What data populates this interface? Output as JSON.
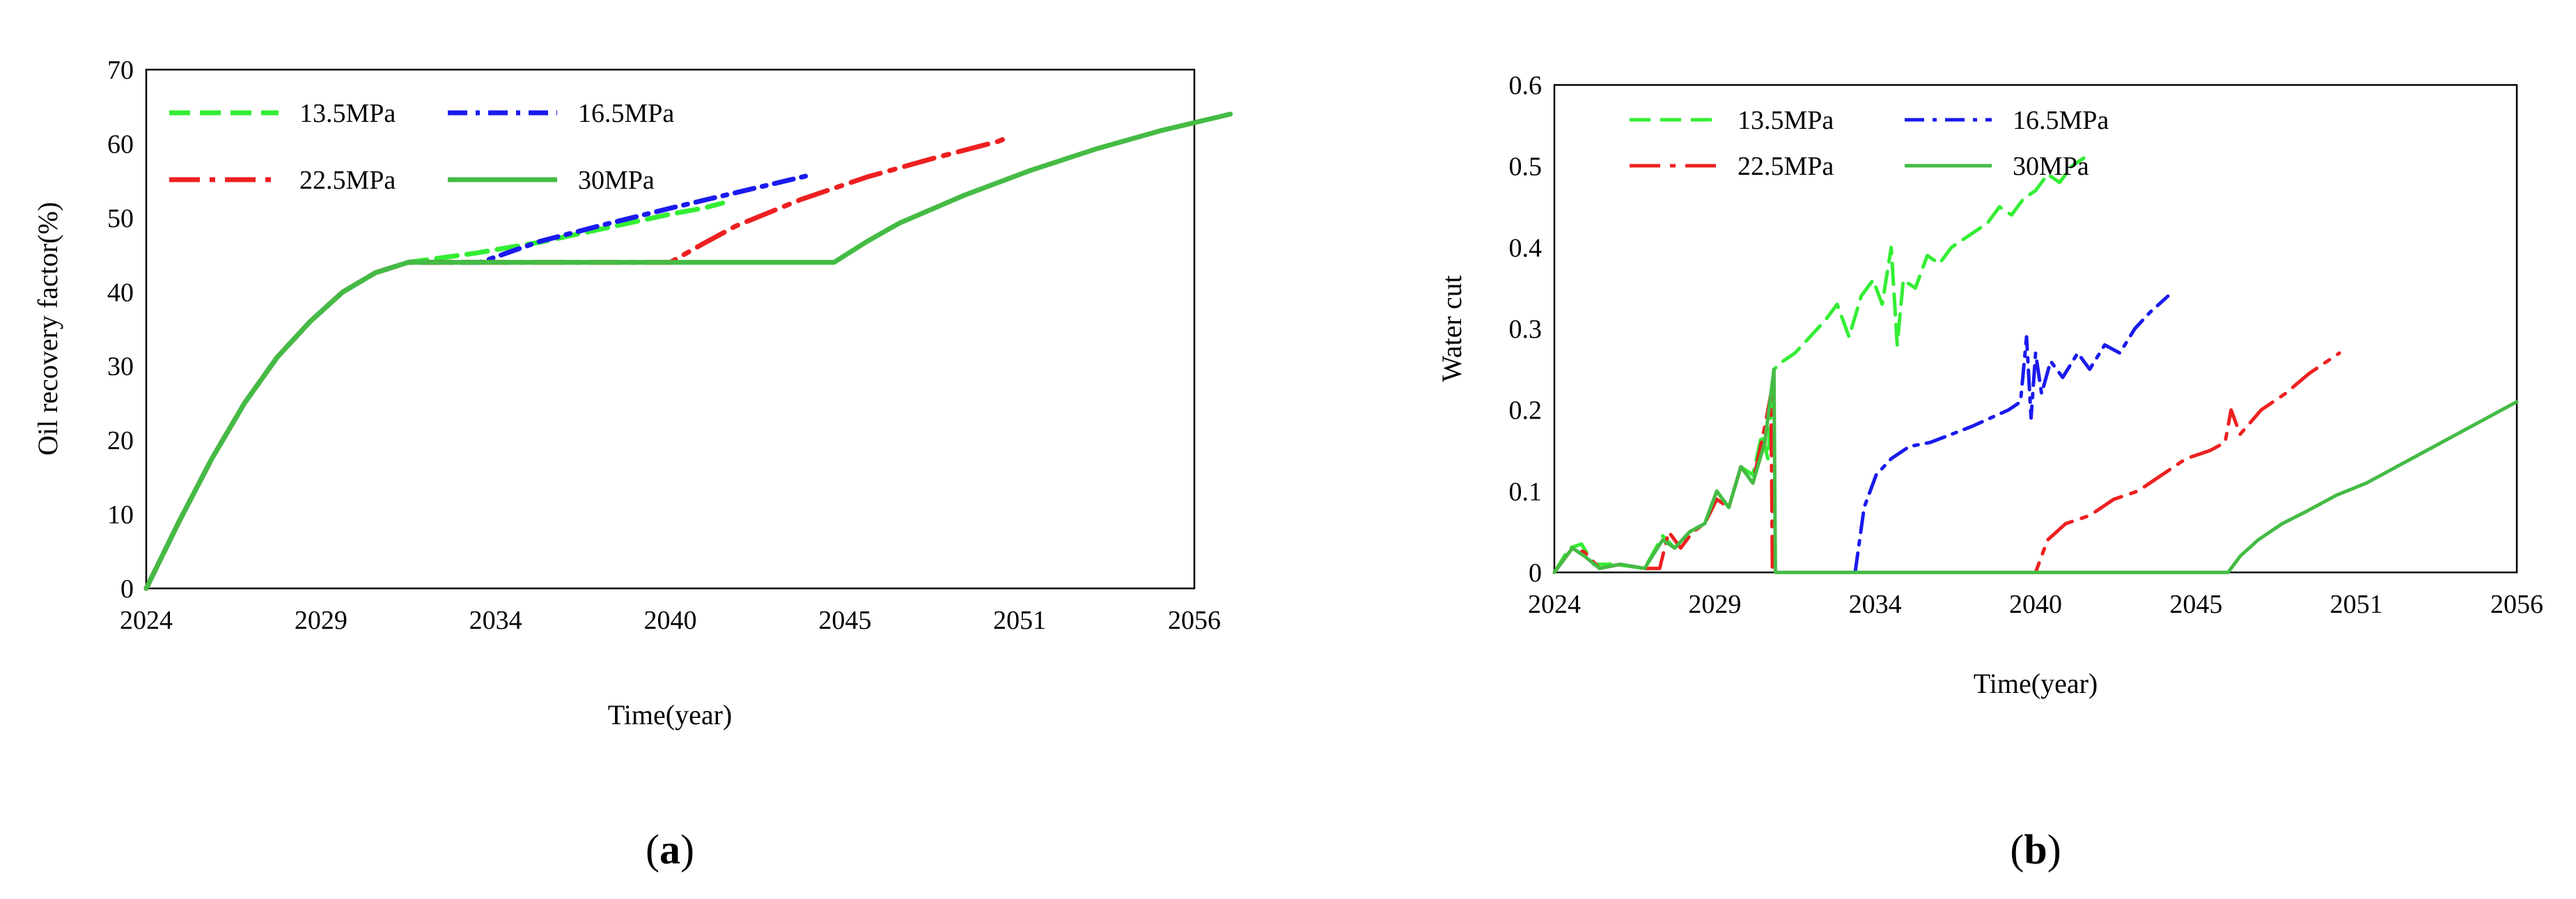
{
  "charts": [
    {
      "id": "a",
      "panel_label": {
        "open": "(",
        "letter": "a",
        "close": ")"
      },
      "chart_data": {
        "type": "line",
        "title": "",
        "xlabel": "Time(year)",
        "ylabel": "Oil recovery factor(%)",
        "xticks": [
          "2024",
          "2029",
          "2034",
          "2040",
          "2045",
          "2051",
          "2056"
        ],
        "yticks": [
          "0",
          "10",
          "20",
          "30",
          "40",
          "50",
          "60",
          "70"
        ],
        "xlim": [
          2024,
          2056
        ],
        "ylim": [
          0,
          70
        ],
        "grid": false,
        "legend": "top-left, 2 columns",
        "series": [
          {
            "name": "13.5MPa",
            "color": "#33ee33",
            "dash": "dashed",
            "x": [
              2024,
              2025,
              2026,
              2027,
              2028,
              2029,
              2030,
              2031,
              2032,
              2034,
              2036,
              2038,
              2040,
              2041,
              2041.6
            ],
            "y": [
              0,
              9,
              17.5,
              25,
              31.2,
              36,
              40,
              42.6,
              44,
              45.2,
              46.7,
              48.6,
              50.5,
              51.3,
              52
            ]
          },
          {
            "name": "16.5MPa",
            "color": "#1a1aee",
            "dash": "dash-dot",
            "x": [
              2024,
              2025,
              2026,
              2027,
              2028,
              2029,
              2030,
              2031,
              2032,
              2034.2,
              2036,
              2038,
              2040,
              2042,
              2044.2
            ],
            "y": [
              0,
              9,
              17.5,
              25,
              31.2,
              36,
              40,
              42.6,
              44,
              44,
              46.8,
              49.1,
              51.3,
              53.4,
              55.7
            ]
          },
          {
            "name": "22.5MPa",
            "color": "#ee2020",
            "dash": "long-dash-dot",
            "x": [
              2024,
              2025,
              2026,
              2027,
              2028,
              2029,
              2030,
              2031,
              2032,
              2040,
              2041,
              2042,
              2044,
              2046,
              2048,
              2050,
              2050.4
            ],
            "y": [
              0,
              9,
              17.5,
              25,
              31.2,
              36,
              40,
              42.6,
              44,
              44,
              46.5,
              48.9,
              52.5,
              55.5,
              58,
              60.3,
              61
            ]
          },
          {
            "name": "30MPa",
            "color": "#44bb44",
            "dash": "solid",
            "x": [
              2024,
              2025,
              2026,
              2027,
              2028,
              2029,
              2030,
              2031,
              2032,
              2045,
              2046,
              2047,
              2049,
              2051,
              2053,
              2055,
              2057.1
            ],
            "y": [
              0,
              9,
              17.5,
              25,
              31.2,
              36,
              40,
              42.6,
              44,
              44,
              46.8,
              49.3,
              53.1,
              56.4,
              59.3,
              61.8,
              64
            ]
          }
        ]
      }
    },
    {
      "id": "b",
      "panel_label": {
        "open": "(",
        "letter": "b",
        "close": ")"
      },
      "chart_data": {
        "type": "line",
        "title": "",
        "xlabel": "Time(year)",
        "ylabel": "Water cut",
        "xticks": [
          "2024",
          "2029",
          "2034",
          "2040",
          "2045",
          "2051",
          "2056"
        ],
        "yticks": [
          "0",
          "0.1",
          "0.2",
          "0.3",
          "0.4",
          "0.5",
          "0.6"
        ],
        "xlim": [
          2024,
          2056
        ],
        "ylim": [
          0,
          0.6
        ],
        "grid": false,
        "legend": "top-left, 2 columns",
        "series": [
          {
            "name": "13.5MPa",
            "color": "#33ee33",
            "dash": "dashed",
            "x": [
              2024,
              2024.5,
              2024.9,
              2025.3,
              2026,
              2027,
              2027.6,
              2028,
              2028.5,
              2029,
              2029.4,
              2029.8,
              2030.2,
              2030.6,
              2030.9,
              2031.1,
              2031.3,
              2031.6,
              2032,
              2032.5,
              2033,
              2033.4,
              2033.8,
              2034.2,
              2034.6,
              2034.9,
              2035.2,
              2035.4,
              2035.6,
              2036,
              2036.4,
              2036.8,
              2037.2,
              2037.6,
              2038,
              2038.4,
              2038.8,
              2039.2,
              2039.6,
              2040,
              2040.4,
              2040.8,
              2041.2,
              2041.6
            ],
            "y": [
              0,
              0.03,
              0.035,
              0.01,
              0.01,
              0.005,
              0.045,
              0.03,
              0.05,
              0.06,
              0.1,
              0.08,
              0.13,
              0.12,
              0.17,
              0.14,
              0.25,
              0.26,
              0.27,
              0.29,
              0.31,
              0.33,
              0.29,
              0.34,
              0.36,
              0.33,
              0.4,
              0.28,
              0.36,
              0.35,
              0.39,
              0.38,
              0.4,
              0.41,
              0.42,
              0.43,
              0.45,
              0.44,
              0.46,
              0.47,
              0.49,
              0.48,
              0.5,
              0.51
            ]
          },
          {
            "name": "16.5MPa",
            "color": "#1a1aee",
            "dash": "dash-dot",
            "x": [
              2034,
              2034.3,
              2034.7,
              2035.2,
              2035.8,
              2036.5,
              2037.2,
              2037.9,
              2038.5,
              2039.1,
              2039.5,
              2039.7,
              2039.85,
              2040,
              2040.2,
              2040.5,
              2040.9,
              2041.4,
              2041.8,
              2042.3,
              2042.8,
              2043.3,
              2043.8,
              2044.4
            ],
            "y": [
              0,
              0.08,
              0.12,
              0.14,
              0.155,
              0.16,
              0.17,
              0.18,
              0.19,
              0.2,
              0.21,
              0.29,
              0.19,
              0.27,
              0.22,
              0.26,
              0.24,
              0.27,
              0.25,
              0.28,
              0.27,
              0.3,
              0.32,
              0.34
            ]
          },
          {
            "name": "22.5MPa",
            "color": "#ee2020",
            "dash": "long-dash-dot",
            "x": [
              2024,
              2024.6,
              2025,
              2025.5,
              2026.2,
              2027,
              2027.5,
              2027.8,
              2028.2,
              2028.6,
              2029,
              2029.4,
              2029.8,
              2030.2,
              2030.6,
              2031,
              2031.2,
              2031.25,
              2040,
              2040.4,
              2041,
              2041.8,
              2042.6,
              2043.4,
              2044.2,
              2045,
              2045.8,
              2046.3,
              2046.5,
              2046.8,
              2047.5,
              2048.3,
              2049.1,
              2050.1
            ],
            "y": [
              0,
              0.03,
              0.025,
              0.005,
              0.01,
              0.005,
              0.005,
              0.05,
              0.03,
              0.05,
              0.06,
              0.09,
              0.08,
              0.13,
              0.11,
              0.18,
              0.22,
              0,
              0,
              0.04,
              0.06,
              0.07,
              0.09,
              0.1,
              0.12,
              0.14,
              0.15,
              0.16,
              0.2,
              0.17,
              0.2,
              0.22,
              0.245,
              0.27
            ]
          },
          {
            "name": "30MPa",
            "color": "#44bb44",
            "dash": "solid",
            "x": [
              2024,
              2024.6,
              2025,
              2025.5,
              2026.2,
              2027,
              2027.6,
              2028,
              2028.5,
              2029,
              2029.4,
              2029.8,
              2030.2,
              2030.6,
              2031,
              2031.3,
              2031.35,
              2046.4,
              2046.8,
              2047.4,
              2048.2,
              2049,
              2050,
              2051,
              2052,
              2053,
              2054,
              2055,
              2056
            ],
            "y": [
              0,
              0.03,
              0.02,
              0.005,
              0.01,
              0.005,
              0.04,
              0.03,
              0.05,
              0.06,
              0.1,
              0.08,
              0.13,
              0.11,
              0.16,
              0.25,
              0,
              0,
              0.02,
              0.04,
              0.06,
              0.075,
              0.095,
              0.11,
              0.13,
              0.15,
              0.17,
              0.19,
              0.21
            ]
          }
        ]
      }
    }
  ]
}
